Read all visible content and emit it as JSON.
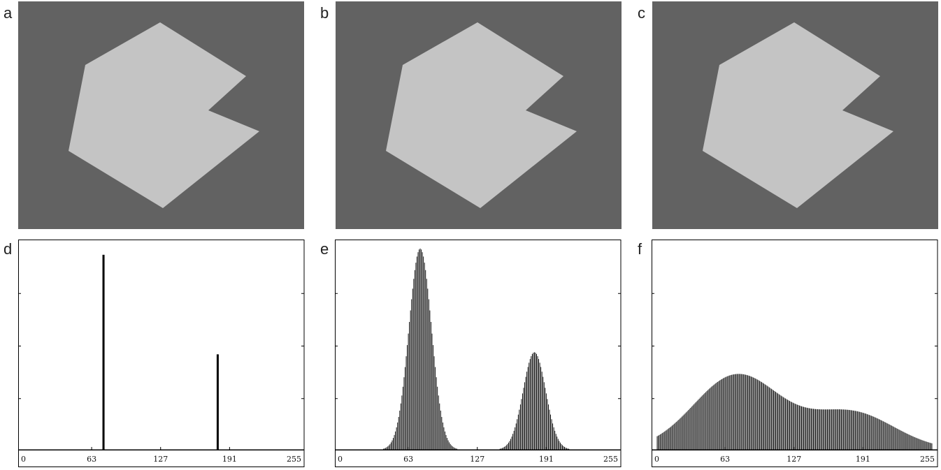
{
  "panels": [
    {
      "letter": "a",
      "noise_sigma": 0
    },
    {
      "letter": "b",
      "noise_sigma": 10
    },
    {
      "letter": "c",
      "noise_sigma": 38
    },
    {
      "letter": "d"
    },
    {
      "letter": "e"
    },
    {
      "letter": "f"
    }
  ],
  "colors": {
    "background": "#626262",
    "object": "#c4c4c4",
    "axis": "#000000",
    "bars": "#000000"
  },
  "chart_data": [
    {
      "type": "bar",
      "panel": "d",
      "xlim": [
        0,
        255
      ],
      "ylim": [
        0,
        1
      ],
      "xticks": [
        0,
        63,
        127,
        191,
        255
      ],
      "ytick_marks": 3,
      "spikes": [
        {
          "x": 74,
          "y": 0.94
        },
        {
          "x": 180,
          "y": 0.46
        }
      ]
    },
    {
      "type": "bar",
      "panel": "e",
      "xlim": [
        0,
        255
      ],
      "ylim": [
        0,
        1
      ],
      "xticks": [
        0,
        63,
        127,
        191,
        255
      ],
      "ytick_marks": 3,
      "gaussians": [
        {
          "mu": 74,
          "sigma": 10.5,
          "peak": 0.97
        },
        {
          "mu": 180,
          "sigma": 10.5,
          "peak": 0.47
        }
      ]
    },
    {
      "type": "bar",
      "panel": "f",
      "xlim": [
        0,
        255
      ],
      "ylim": [
        0,
        1
      ],
      "xticks": [
        0,
        63,
        127,
        191,
        255
      ],
      "ytick_marks": 3,
      "gaussians": [
        {
          "mu": 74,
          "sigma": 40,
          "peak": 0.36
        },
        {
          "mu": 180,
          "sigma": 40,
          "peak": 0.18
        }
      ]
    }
  ]
}
